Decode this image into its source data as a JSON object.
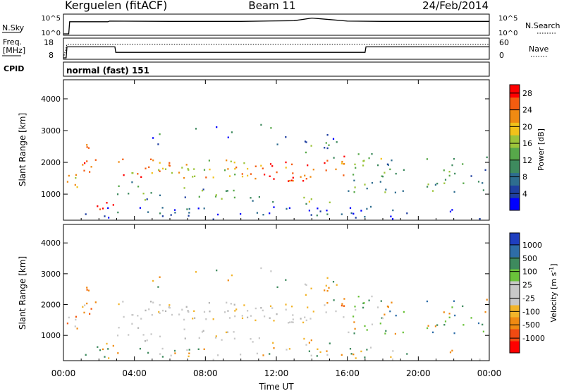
{
  "header": {
    "station": "Kerguelen (fitACF)",
    "beam": "Beam 11",
    "date": "24/Feb/2014"
  },
  "nsky_panel": {
    "left_label": "N.Sky",
    "right_label": "N.Search",
    "left_ticks": [
      "10^5",
      "10^0"
    ],
    "right_ticks": [
      "10^5",
      "10^0"
    ]
  },
  "freq_panel": {
    "left_label_1": "Freq.",
    "left_label_2": "[MHz]",
    "right_label": "Nave",
    "left_ticks": [
      "18",
      "8"
    ],
    "right_ticks": [
      "60",
      "0"
    ]
  },
  "cpid": {
    "label": "CPID",
    "mode": "normal (fast) 151"
  },
  "x_axis": {
    "label": "Time UT",
    "ticks": [
      "00:00",
      "04:00",
      "08:00",
      "12:00",
      "16:00",
      "20:00",
      "00:00"
    ]
  },
  "colors": {
    "power_scale": [
      "#0000ff",
      "#1f3fa0",
      "#2e6d8f",
      "#3e8a5e",
      "#57a84a",
      "#9cc43a",
      "#f2c21a",
      "#f08a12",
      "#f45c10",
      "#ff0000"
    ],
    "velocity_scale": [
      "#ff0000",
      "#f04a12",
      "#f08a12",
      "#f2b42a",
      "#c8c8c8",
      "#c8c8c8",
      "#6ac23a",
      "#3e8a5e",
      "#2e6da8",
      "#1f3fc0"
    ]
  },
  "chart_data": [
    {
      "type": "line",
      "title": "N.Sky / N.Search",
      "x_range_hours": [
        0,
        24
      ],
      "y_scale": "log",
      "series": [
        {
          "name": "N.Sky",
          "x": [
            0,
            0.3,
            0.35,
            2.5,
            2.6,
            6,
            10,
            13,
            14,
            15,
            16,
            18,
            24
          ],
          "y": [
            1,
            1,
            2000,
            2000,
            3000,
            2500,
            2500,
            4000,
            20000,
            8000,
            3000,
            2500,
            2500
          ]
        }
      ]
    },
    {
      "type": "line",
      "title": "Freq / Nave",
      "x_range_hours": [
        0,
        24
      ],
      "series": [
        {
          "name": "Freq. [MHz]",
          "x": [
            0,
            0.15,
            0.2,
            2.9,
            2.95,
            17,
            17.05,
            24
          ],
          "y": [
            8,
            8,
            14,
            14,
            11,
            11,
            14,
            14
          ]
        },
        {
          "name": "Nave",
          "x": [
            0,
            0.2,
            24
          ],
          "y": [
            0,
            44,
            44
          ]
        }
      ]
    },
    {
      "type": "heatmap",
      "title": "Power",
      "xlabel": "",
      "ylabel": "Slant Range [km]",
      "x_range_hours": [
        0,
        24
      ],
      "ylim": [
        180,
        4600
      ],
      "y_ticks": [
        1000,
        2000,
        3000,
        4000
      ],
      "colorbar_label": "Power [dB]",
      "colorbar_ticks": [
        4,
        8,
        12,
        16,
        20,
        24,
        28
      ],
      "colorbar_range": [
        0,
        30
      ]
    },
    {
      "type": "heatmap",
      "title": "Velocity",
      "xlabel": "Time UT",
      "ylabel": "Slant Range [km]",
      "x_range_hours": [
        0,
        24
      ],
      "ylim": [
        180,
        4600
      ],
      "y_ticks": [
        1000,
        2000,
        3000,
        4000
      ],
      "colorbar_label": "Velocity [m s^-1]",
      "colorbar_ticks": [
        1000,
        500,
        100,
        25,
        -25,
        -100,
        -500,
        -1000
      ]
    }
  ]
}
